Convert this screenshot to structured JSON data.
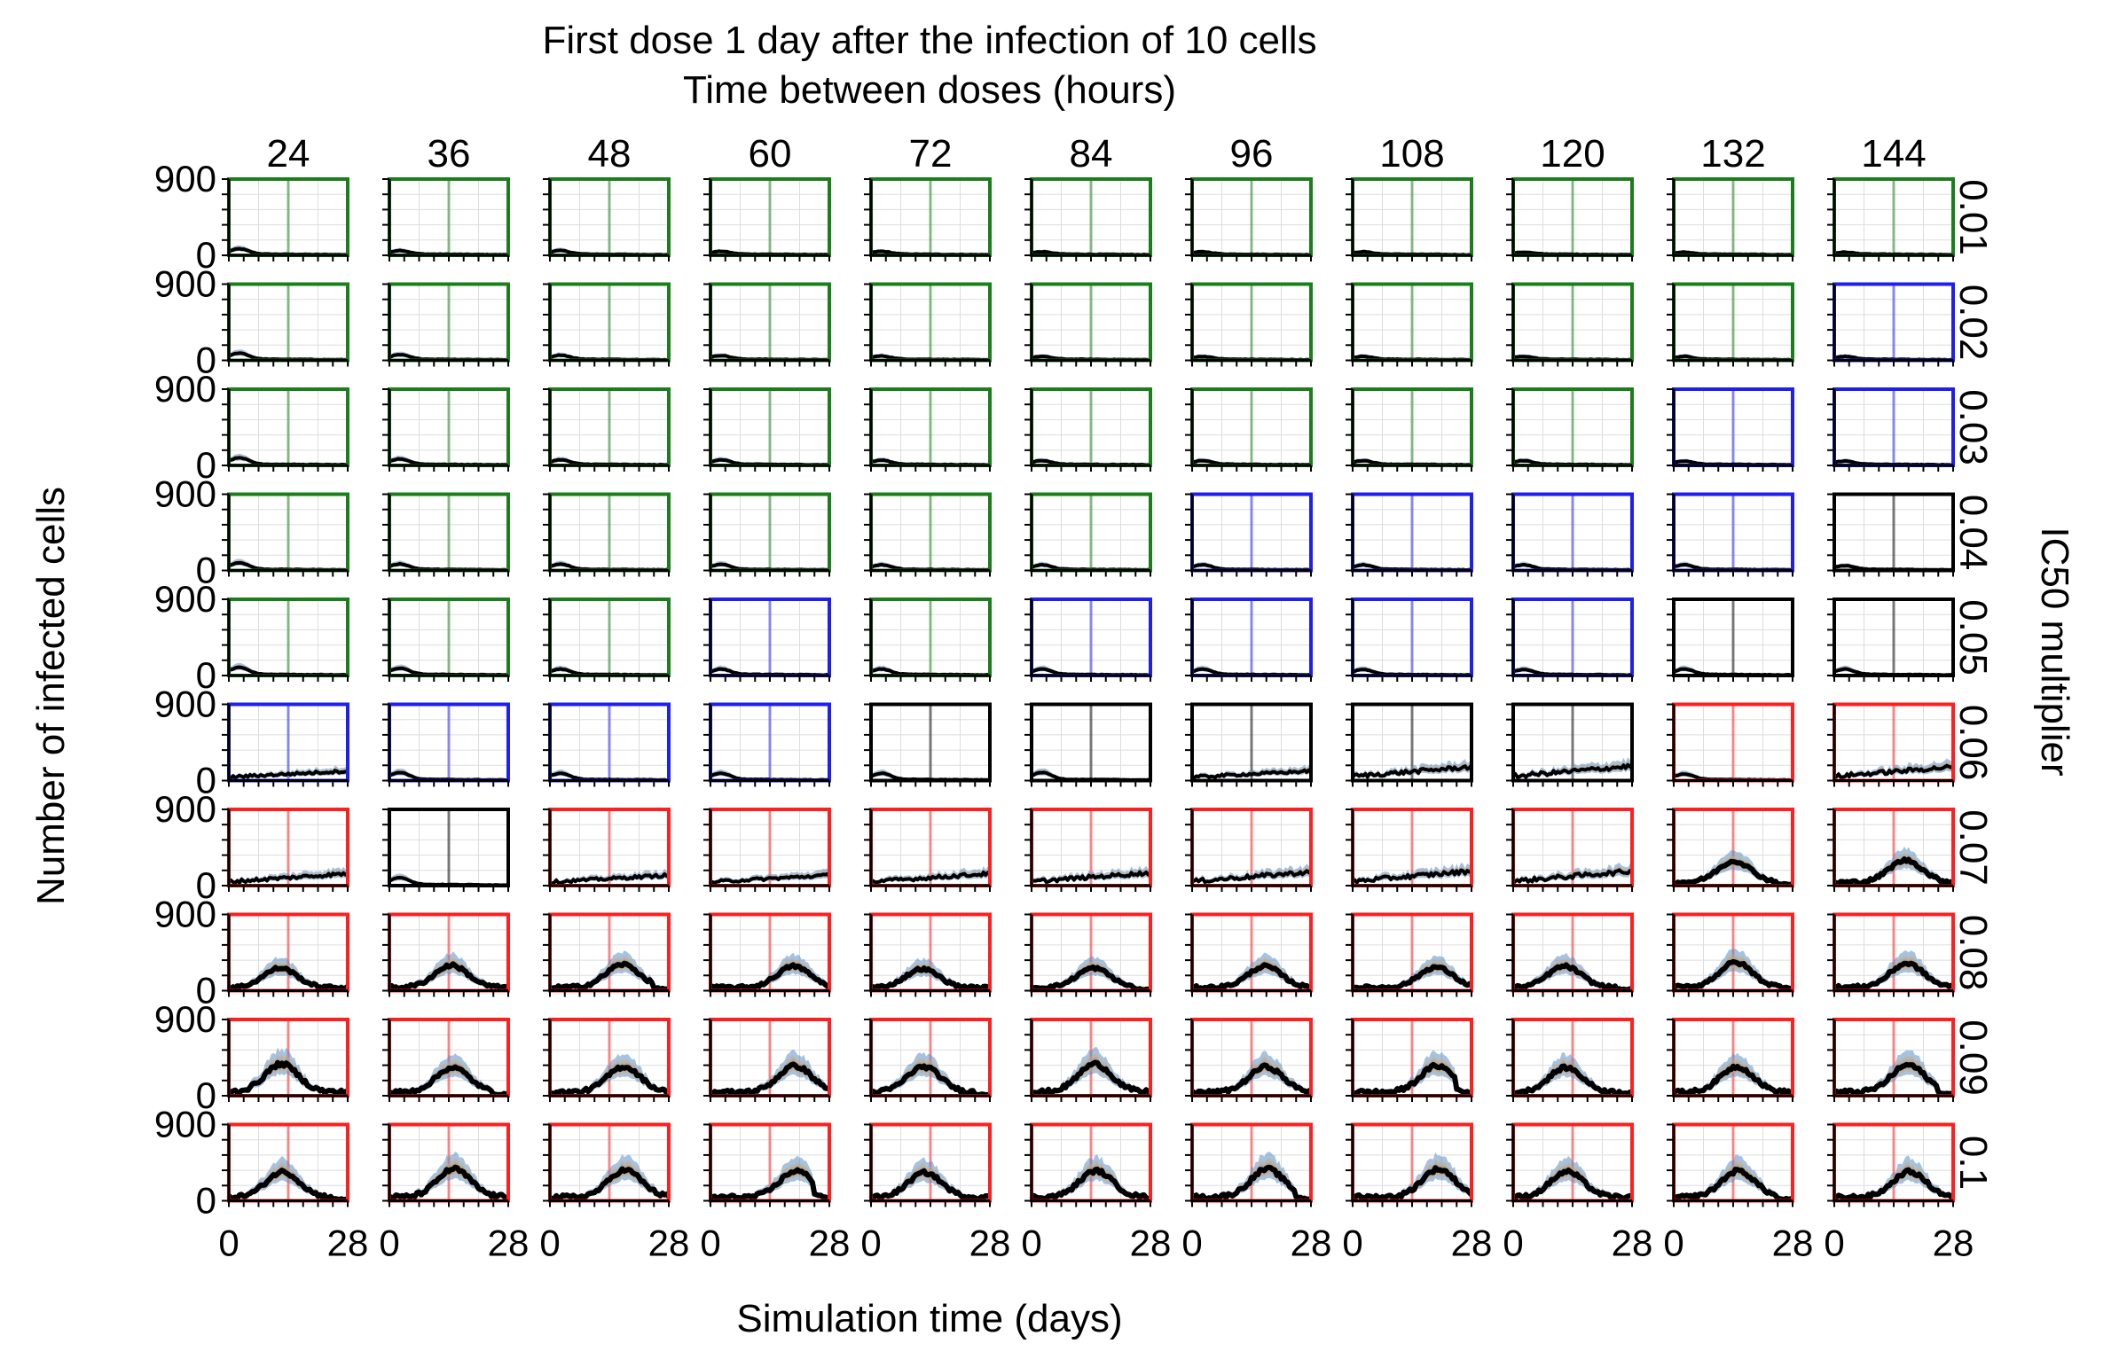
{
  "title": "First dose 1 day after the infection of 10 cells",
  "subtitle": "Time between doses (hours)",
  "xlabel": "Simulation time (days)",
  "ylabel": "Number of infected cells",
  "right_label": "IC50 multiplier",
  "colors": {
    "green": "#1a7f1a",
    "blue": "#1f1ff0",
    "black": "#000000",
    "red": "#ff1f1f",
    "mean_line": "#000000",
    "band_blue": "#5b8fc9",
    "band_orange": "#e0a35a",
    "band_gray": "#a0a0a0",
    "grid": "#dddddd"
  },
  "chart_data": {
    "type": "line",
    "layout": "small-multiples-grid",
    "columns": [
      "24",
      "36",
      "48",
      "60",
      "72",
      "84",
      "96",
      "108",
      "120",
      "132",
      "144"
    ],
    "rows": [
      "0.01",
      "0.02",
      "0.03",
      "0.04",
      "0.05",
      "0.06",
      "0.07",
      "0.08",
      "0.09",
      "0.1"
    ],
    "xlim": [
      0,
      28
    ],
    "ylim": [
      0,
      900
    ],
    "xticks": [
      "0",
      "28"
    ],
    "yticks": [
      "0",
      "900"
    ],
    "frame_colors": [
      [
        "green",
        "green",
        "green",
        "green",
        "green",
        "green",
        "green",
        "green",
        "green",
        "green",
        "green"
      ],
      [
        "green",
        "green",
        "green",
        "green",
        "green",
        "green",
        "green",
        "green",
        "green",
        "green",
        "blue"
      ],
      [
        "green",
        "green",
        "green",
        "green",
        "green",
        "green",
        "green",
        "green",
        "green",
        "blue",
        "blue"
      ],
      [
        "green",
        "green",
        "green",
        "green",
        "green",
        "green",
        "blue",
        "blue",
        "blue",
        "blue",
        "black"
      ],
      [
        "green",
        "green",
        "green",
        "blue",
        "green",
        "blue",
        "blue",
        "blue",
        "blue",
        "black",
        "black"
      ],
      [
        "blue",
        "blue",
        "blue",
        "blue",
        "black",
        "black",
        "black",
        "black",
        "black",
        "red",
        "red"
      ],
      [
        "red",
        "black",
        "red",
        "red",
        "red",
        "red",
        "red",
        "red",
        "red",
        "red",
        "red"
      ],
      [
        "red",
        "red",
        "red",
        "red",
        "red",
        "red",
        "red",
        "red",
        "red",
        "red",
        "red"
      ],
      [
        "red",
        "red",
        "red",
        "red",
        "red",
        "red",
        "red",
        "red",
        "red",
        "red",
        "red"
      ],
      [
        "red",
        "red",
        "red",
        "red",
        "red",
        "red",
        "red",
        "red",
        "red",
        "red",
        "red"
      ]
    ],
    "dose_marker_day": 14,
    "approx_peak_infected": [
      [
        60,
        40,
        40,
        30,
        30,
        25,
        25,
        25,
        20,
        20,
        20
      ],
      [
        70,
        50,
        45,
        40,
        35,
        30,
        30,
        30,
        30,
        30,
        30
      ],
      [
        75,
        60,
        50,
        50,
        45,
        40,
        40,
        40,
        40,
        35,
        35
      ],
      [
        75,
        60,
        60,
        55,
        50,
        50,
        50,
        50,
        50,
        50,
        40
      ],
      [
        80,
        70,
        60,
        60,
        60,
        60,
        60,
        55,
        55,
        60,
        60
      ],
      [
        90,
        80,
        70,
        70,
        70,
        80,
        90,
        140,
        150,
        60,
        140
      ],
      [
        120,
        80,
        100,
        100,
        120,
        130,
        140,
        150,
        150,
        250,
        260
      ],
      [
        230,
        260,
        270,
        250,
        220,
        230,
        250,
        240,
        250,
        290,
        280
      ],
      [
        330,
        290,
        300,
        310,
        300,
        330,
        300,
        310,
        290,
        300,
        320
      ],
      [
        300,
        330,
        320,
        310,
        290,
        310,
        330,
        330,
        300,
        310,
        300
      ]
    ]
  }
}
